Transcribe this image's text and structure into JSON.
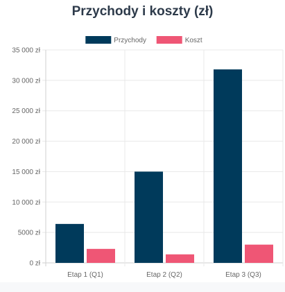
{
  "chart_data": {
    "type": "bar",
    "title": "Przychody i koszty (zł)",
    "categories": [
      "Etap 1 (Q1)",
      "Etap 2 (Q2)",
      "Etap 3 (Q3)"
    ],
    "series": [
      {
        "name": "Przychody",
        "values": [
          6400,
          15000,
          31800
        ],
        "color": "#003a5b"
      },
      {
        "name": "Koszt",
        "values": [
          2300,
          1400,
          3000
        ],
        "color": "#ef5675"
      }
    ],
    "y_ticks": [
      "0 zł",
      "5000 zł",
      "10 000 zł",
      "15 000 zł",
      "20 000 zł",
      "25 000 zł",
      "30 000 zł",
      "35 000 zł"
    ],
    "ylim": [
      0,
      35000
    ],
    "grid": true,
    "legend_position": "top-center"
  }
}
